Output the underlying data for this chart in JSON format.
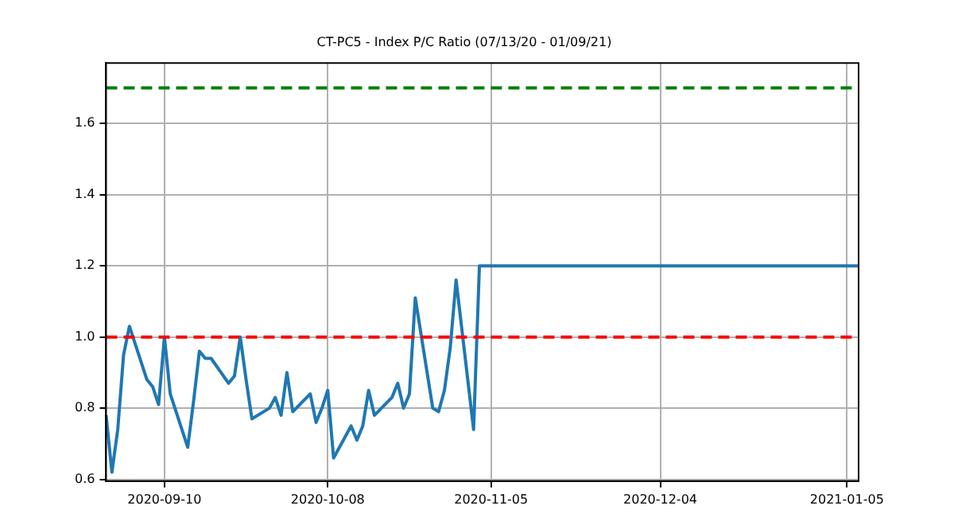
{
  "chart_data": {
    "type": "line",
    "title": "CT-PC5 - Index P/C Ratio (07/13/20 - 01/09/21)",
    "x": [
      "2020-08-31",
      "2020-09-01",
      "2020-09-02",
      "2020-09-03",
      "2020-09-04",
      "2020-09-07",
      "2020-09-08",
      "2020-09-09",
      "2020-09-10",
      "2020-09-11",
      "2020-09-14",
      "2020-09-15",
      "2020-09-16",
      "2020-09-17",
      "2020-09-18",
      "2020-09-21",
      "2020-09-22",
      "2020-09-23",
      "2020-09-24",
      "2020-09-25",
      "2020-09-28",
      "2020-09-29",
      "2020-09-30",
      "2020-10-01",
      "2020-10-02",
      "2020-10-05",
      "2020-10-06",
      "2020-10-07",
      "2020-10-08",
      "2020-10-09",
      "2020-10-12",
      "2020-10-13",
      "2020-10-14",
      "2020-10-15",
      "2020-10-16",
      "2020-10-19",
      "2020-10-20",
      "2020-10-21",
      "2020-10-22",
      "2020-10-23",
      "2020-10-26",
      "2020-10-27",
      "2020-10-28",
      "2020-10-29",
      "2020-10-30",
      "2020-11-02",
      "2020-11-03",
      "2021-01-07"
    ],
    "series": [
      {
        "color": "#1f77b4",
        "values": [
          0.78,
          0.62,
          0.74,
          0.95,
          1.03,
          0.88,
          0.86,
          0.81,
          1.0,
          0.84,
          0.69,
          0.82,
          0.96,
          0.94,
          0.94,
          0.87,
          0.89,
          1.0,
          0.88,
          0.77,
          0.8,
          0.83,
          0.78,
          0.9,
          0.79,
          0.84,
          0.76,
          0.8,
          0.85,
          0.66,
          0.75,
          0.71,
          0.75,
          0.85,
          0.78,
          0.83,
          0.87,
          0.8,
          0.84,
          1.11,
          0.8,
          0.79,
          0.85,
          0.97,
          1.16,
          0.74,
          1.2,
          1.2
        ]
      }
    ],
    "xlim": [
      "2020-08-31",
      "2021-01-07"
    ],
    "xticks": [
      {
        "value": "2020-09-10",
        "label": "2020-09-10"
      },
      {
        "value": "2020-10-08",
        "label": "2020-10-08"
      },
      {
        "value": "2020-11-05",
        "label": "2020-11-05"
      },
      {
        "value": "2020-12-04",
        "label": "2020-12-04"
      },
      {
        "value": "2021-01-05",
        "label": "2021-01-05"
      }
    ],
    "ylim": [
      0.595,
      1.77
    ],
    "yticks": [
      0.6,
      0.8,
      {
        "value": 1,
        "label": "1.0"
      },
      1.2,
      1.4,
      1.6
    ],
    "ref_lines": [
      {
        "axis": "y",
        "value": 1.7,
        "color": "#008000",
        "line_style": "dashed"
      },
      {
        "axis": "y",
        "value": 1.0,
        "color": "#ff0000",
        "line_style": "dashed"
      }
    ],
    "grid": true,
    "marker": "none",
    "line_style": "solid"
  }
}
